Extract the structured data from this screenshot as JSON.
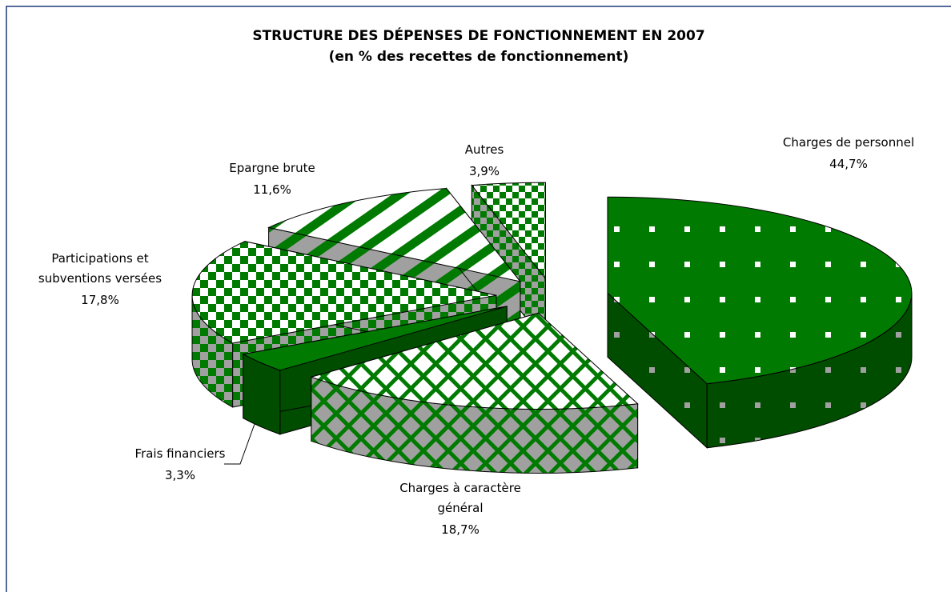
{
  "chart_data": {
    "type": "pie3d",
    "title": "STRUCTURE DES DÉPENSES DE FONCTIONNEMENT EN 2007",
    "subtitle": "(en % des recettes de fonctionnement)",
    "categories": [
      "Charges de personnel",
      "Charges à caractère général",
      "Frais financiers",
      "Participations et subventions versées",
      "Epargne brute",
      "Autres"
    ],
    "values": [
      44.7,
      18.7,
      3.3,
      17.8,
      11.6,
      3.9
    ],
    "value_labels": [
      "44,7%",
      "18,7%",
      "3,3%",
      "17,8%",
      "11,6%",
      "3,9%"
    ],
    "color": "#007a00"
  }
}
